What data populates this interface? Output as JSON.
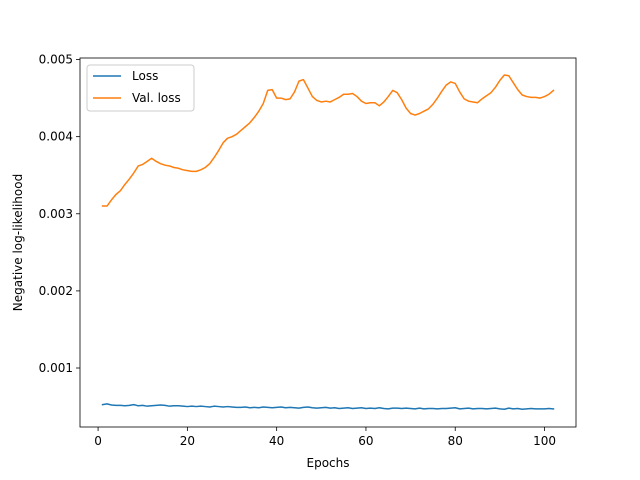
{
  "chart_data": {
    "type": "line",
    "title": "",
    "xlabel": "Epochs",
    "ylabel": "Negative log-likelihood",
    "xlim": [
      -4.05,
      107.05
    ],
    "ylim": [
      0.000235,
      0.00502
    ],
    "xticks": [
      0,
      20,
      40,
      60,
      80,
      100
    ],
    "xtick_labels": [
      "0",
      "20",
      "40",
      "60",
      "80",
      "100"
    ],
    "yticks": [
      0.001,
      0.002,
      0.003,
      0.004,
      0.005
    ],
    "ytick_labels": [
      "0.001",
      "0.002",
      "0.003",
      "0.004",
      "0.005"
    ],
    "grid": false,
    "legend": "top-left",
    "series": [
      {
        "name": "Loss",
        "color": "#1f77b4",
        "x": [
          1,
          2,
          3,
          4,
          5,
          6,
          7,
          8,
          9,
          10,
          11,
          12,
          13,
          14,
          15,
          16,
          17,
          18,
          19,
          20,
          21,
          22,
          23,
          24,
          25,
          26,
          27,
          28,
          29,
          30,
          31,
          32,
          33,
          34,
          35,
          36,
          37,
          38,
          39,
          40,
          41,
          42,
          43,
          44,
          45,
          46,
          47,
          48,
          49,
          50,
          51,
          52,
          53,
          54,
          55,
          56,
          57,
          58,
          59,
          60,
          61,
          62,
          63,
          64,
          65,
          66,
          67,
          68,
          69,
          70,
          71,
          72,
          73,
          74,
          75,
          76,
          77,
          78,
          79,
          80,
          81,
          82,
          83,
          84,
          85,
          86,
          87,
          88,
          89,
          90,
          91,
          92,
          93,
          94,
          95,
          96,
          97,
          98,
          99,
          100,
          101,
          102
        ],
        "y": [
          0.000525,
          0.000535,
          0.00052,
          0.000515,
          0.000515,
          0.00051,
          0.000515,
          0.000525,
          0.00051,
          0.000515,
          0.000505,
          0.00051,
          0.000515,
          0.00052,
          0.000515,
          0.000505,
          0.00051,
          0.00051,
          0.000505,
          0.0005,
          0.000505,
          0.0005,
          0.000505,
          0.0005,
          0.000495,
          0.000505,
          0.0005,
          0.000495,
          0.0005,
          0.000495,
          0.00049,
          0.00049,
          0.000495,
          0.000485,
          0.00049,
          0.000485,
          0.000495,
          0.00049,
          0.000485,
          0.00049,
          0.000495,
          0.000485,
          0.00049,
          0.000485,
          0.00048,
          0.00049,
          0.000495,
          0.000485,
          0.00048,
          0.000485,
          0.00049,
          0.00048,
          0.000485,
          0.000475,
          0.00048,
          0.000485,
          0.000475,
          0.00048,
          0.000485,
          0.000475,
          0.00048,
          0.000475,
          0.000485,
          0.000475,
          0.00047,
          0.00048,
          0.00048,
          0.000475,
          0.00048,
          0.000475,
          0.00047,
          0.00048,
          0.00047,
          0.000475,
          0.000475,
          0.00047,
          0.000475,
          0.000475,
          0.00048,
          0.000485,
          0.00047,
          0.000475,
          0.00048,
          0.00047,
          0.000475,
          0.000475,
          0.00047,
          0.000475,
          0.00048,
          0.00047,
          0.000465,
          0.00048,
          0.00047,
          0.000475,
          0.000465,
          0.00047,
          0.000475,
          0.00047,
          0.00047,
          0.00047,
          0.000475,
          0.00047
        ]
      },
      {
        "name": "Val. loss",
        "color": "#ff7f0e",
        "x": [
          1,
          2,
          3,
          4,
          5,
          6,
          7,
          8,
          9,
          10,
          11,
          12,
          13,
          14,
          15,
          16,
          17,
          18,
          19,
          20,
          21,
          22,
          23,
          24,
          25,
          26,
          27,
          28,
          29,
          30,
          31,
          32,
          33,
          34,
          35,
          36,
          37,
          38,
          39,
          40,
          41,
          42,
          43,
          44,
          45,
          46,
          47,
          48,
          49,
          50,
          51,
          52,
          53,
          54,
          55,
          56,
          57,
          58,
          59,
          60,
          61,
          62,
          63,
          64,
          65,
          66,
          67,
          68,
          69,
          70,
          71,
          72,
          73,
          74,
          75,
          76,
          77,
          78,
          79,
          80,
          81,
          82,
          83,
          84,
          85,
          86,
          87,
          88,
          89,
          90,
          91,
          92,
          93,
          94,
          95,
          96,
          97,
          98,
          99,
          100,
          101,
          102
        ],
        "y": [
          0.0031,
          0.0031,
          0.00318,
          0.00325,
          0.0033,
          0.00338,
          0.00345,
          0.00353,
          0.00362,
          0.00364,
          0.00368,
          0.00372,
          0.00368,
          0.00365,
          0.00363,
          0.00362,
          0.0036,
          0.00359,
          0.00357,
          0.00356,
          0.00355,
          0.00355,
          0.00357,
          0.0036,
          0.00365,
          0.00373,
          0.00382,
          0.00392,
          0.00398,
          0.004,
          0.00403,
          0.00408,
          0.00413,
          0.00418,
          0.00425,
          0.00433,
          0.00443,
          0.0046,
          0.00461,
          0.0045,
          0.0045,
          0.00448,
          0.00449,
          0.00458,
          0.00472,
          0.00474,
          0.00463,
          0.00452,
          0.00447,
          0.00445,
          0.00446,
          0.00445,
          0.00448,
          0.00451,
          0.00455,
          0.00455,
          0.00456,
          0.00452,
          0.00446,
          0.00443,
          0.00444,
          0.00444,
          0.0044,
          0.00445,
          0.00452,
          0.0046,
          0.00457,
          0.00448,
          0.00437,
          0.0043,
          0.00428,
          0.0043,
          0.00433,
          0.00436,
          0.00442,
          0.0045,
          0.00459,
          0.00467,
          0.00471,
          0.00469,
          0.00458,
          0.00449,
          0.00446,
          0.00445,
          0.00444,
          0.00449,
          0.00453,
          0.00457,
          0.00464,
          0.00473,
          0.0048,
          0.00479,
          0.0047,
          0.00461,
          0.00454,
          0.00452,
          0.00451,
          0.00451,
          0.0045,
          0.00452,
          0.00455,
          0.0046
        ]
      }
    ]
  }
}
